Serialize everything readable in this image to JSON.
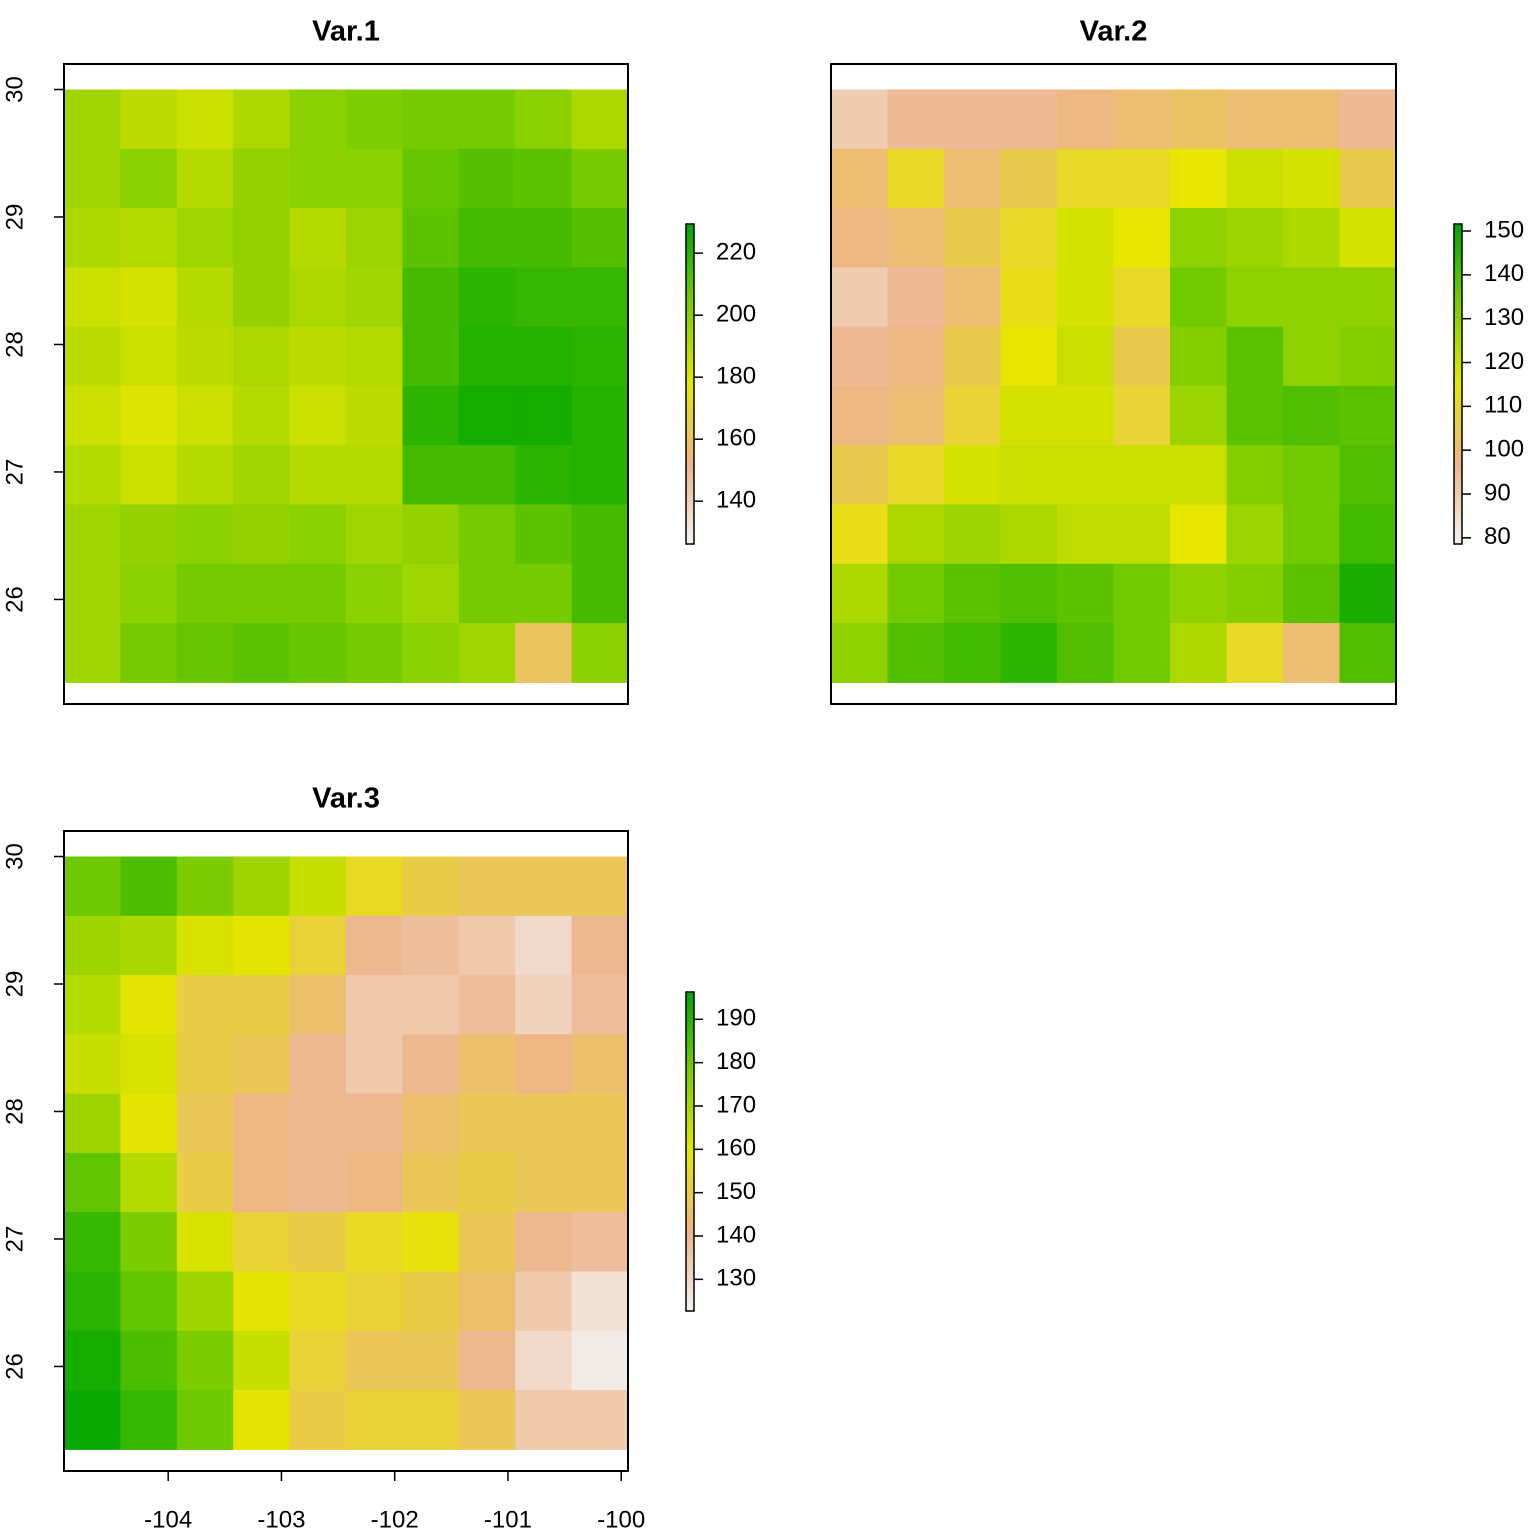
{
  "chart_data": [
    {
      "type": "heatmap",
      "title": "Var.1",
      "xlim": [
        -104.92,
        -99.94
      ],
      "ylim": [
        25.18,
        30.2
      ],
      "extent": [
        -104.92,
        -99.94,
        25.35,
        30.0
      ],
      "yticks": [
        26,
        27,
        28,
        29,
        30
      ],
      "zlim": [
        126.2,
        229.4
      ],
      "zticks": [
        140,
        160,
        180,
        200,
        220
      ],
      "palette": [
        "#F2F2F2",
        "#EDB48A",
        "#E6E600",
        "#7CCC00",
        "#00A600"
      ],
      "values": [
        [
          195,
          188,
          185,
          192,
          200,
          203,
          205,
          205,
          200,
          192
        ],
        [
          195,
          200,
          190,
          198,
          200,
          200,
          208,
          212,
          210,
          205
        ],
        [
          192,
          190,
          195,
          198,
          190,
          196,
          210,
          215,
          215,
          212
        ],
        [
          185,
          182,
          190,
          198,
          192,
          195,
          215,
          220,
          218,
          218
        ],
        [
          188,
          185,
          188,
          192,
          188,
          190,
          215,
          222,
          222,
          220
        ],
        [
          185,
          180,
          185,
          190,
          185,
          188,
          220,
          225,
          225,
          222
        ],
        [
          190,
          185,
          190,
          195,
          190,
          190,
          215,
          215,
          220,
          222
        ],
        [
          195,
          198,
          200,
          198,
          200,
          195,
          198,
          205,
          210,
          215
        ],
        [
          195,
          200,
          205,
          205,
          205,
          200,
          195,
          205,
          205,
          215
        ],
        [
          195,
          205,
          208,
          210,
          208,
          205,
          200,
          195,
          160,
          200
        ]
      ]
    },
    {
      "type": "heatmap",
      "title": "Var.2",
      "xlim": [
        -104.92,
        -99.94
      ],
      "ylim": [
        25.18,
        30.2
      ],
      "extent": [
        -104.92,
        -99.94,
        25.35,
        30.0
      ],
      "zlim": [
        78.6,
        151.6
      ],
      "zticks": [
        80,
        90,
        100,
        110,
        120,
        130,
        140,
        150
      ],
      "palette": [
        "#F2F2F2",
        "#EDB48A",
        "#E6E600",
        "#7CCC00",
        "#00A600"
      ],
      "values": [
        [
          90,
          95,
          95,
          95,
          98,
          100,
          102,
          100,
          100,
          95
        ],
        [
          100,
          110,
          100,
          105,
          110,
          110,
          115,
          120,
          118,
          105
        ],
        [
          98,
          100,
          105,
          110,
          118,
          115,
          130,
          128,
          125,
          118
        ],
        [
          90,
          95,
          100,
          112,
          118,
          110,
          135,
          130,
          130,
          130
        ],
        [
          95,
          98,
          105,
          115,
          120,
          105,
          132,
          138,
          130,
          132
        ],
        [
          98,
          100,
          108,
          118,
          118,
          108,
          128,
          138,
          140,
          138
        ],
        [
          105,
          110,
          118,
          120,
          120,
          120,
          120,
          132,
          135,
          140
        ],
        [
          112,
          125,
          128,
          125,
          122,
          122,
          115,
          128,
          135,
          142
        ],
        [
          125,
          135,
          138,
          140,
          138,
          135,
          130,
          132,
          138,
          148
        ],
        [
          130,
          140,
          142,
          145,
          140,
          135,
          125,
          110,
          100,
          140
        ]
      ]
    },
    {
      "type": "heatmap",
      "title": "Var.3",
      "xlim": [
        -104.92,
        -99.94
      ],
      "ylim": [
        25.18,
        30.2
      ],
      "extent": [
        -104.92,
        -99.94,
        25.35,
        30.0
      ],
      "xticks": [
        -104,
        -103,
        -102,
        -101,
        -100
      ],
      "yticks": [
        26,
        27,
        28,
        29,
        30
      ],
      "zlim": [
        122.7,
        196.3
      ],
      "zticks": [
        130,
        140,
        150,
        160,
        170,
        180,
        190
      ],
      "palette": [
        "#F2F2F2",
        "#EDB48A",
        "#E6E600",
        "#7CCC00",
        "#00A600"
      ],
      "values": [
        [
          180,
          185,
          178,
          172,
          165,
          155,
          150,
          148,
          148,
          148
        ],
        [
          172,
          170,
          162,
          160,
          152,
          140,
          138,
          135,
          130,
          140
        ],
        [
          168,
          160,
          150,
          150,
          145,
          135,
          135,
          138,
          132,
          138
        ],
        [
          165,
          162,
          150,
          148,
          140,
          135,
          140,
          145,
          142,
          145
        ],
        [
          172,
          160,
          148,
          142,
          140,
          140,
          145,
          148,
          148,
          148
        ],
        [
          182,
          168,
          150,
          142,
          140,
          142,
          148,
          150,
          148,
          148
        ],
        [
          188,
          178,
          162,
          152,
          150,
          155,
          158,
          148,
          140,
          138
        ],
        [
          190,
          182,
          172,
          160,
          155,
          152,
          150,
          145,
          135,
          128
        ],
        [
          193,
          185,
          178,
          165,
          152,
          148,
          148,
          140,
          130,
          125
        ],
        [
          195,
          188,
          180,
          160,
          150,
          152,
          152,
          148,
          135,
          135
        ]
      ]
    }
  ]
}
